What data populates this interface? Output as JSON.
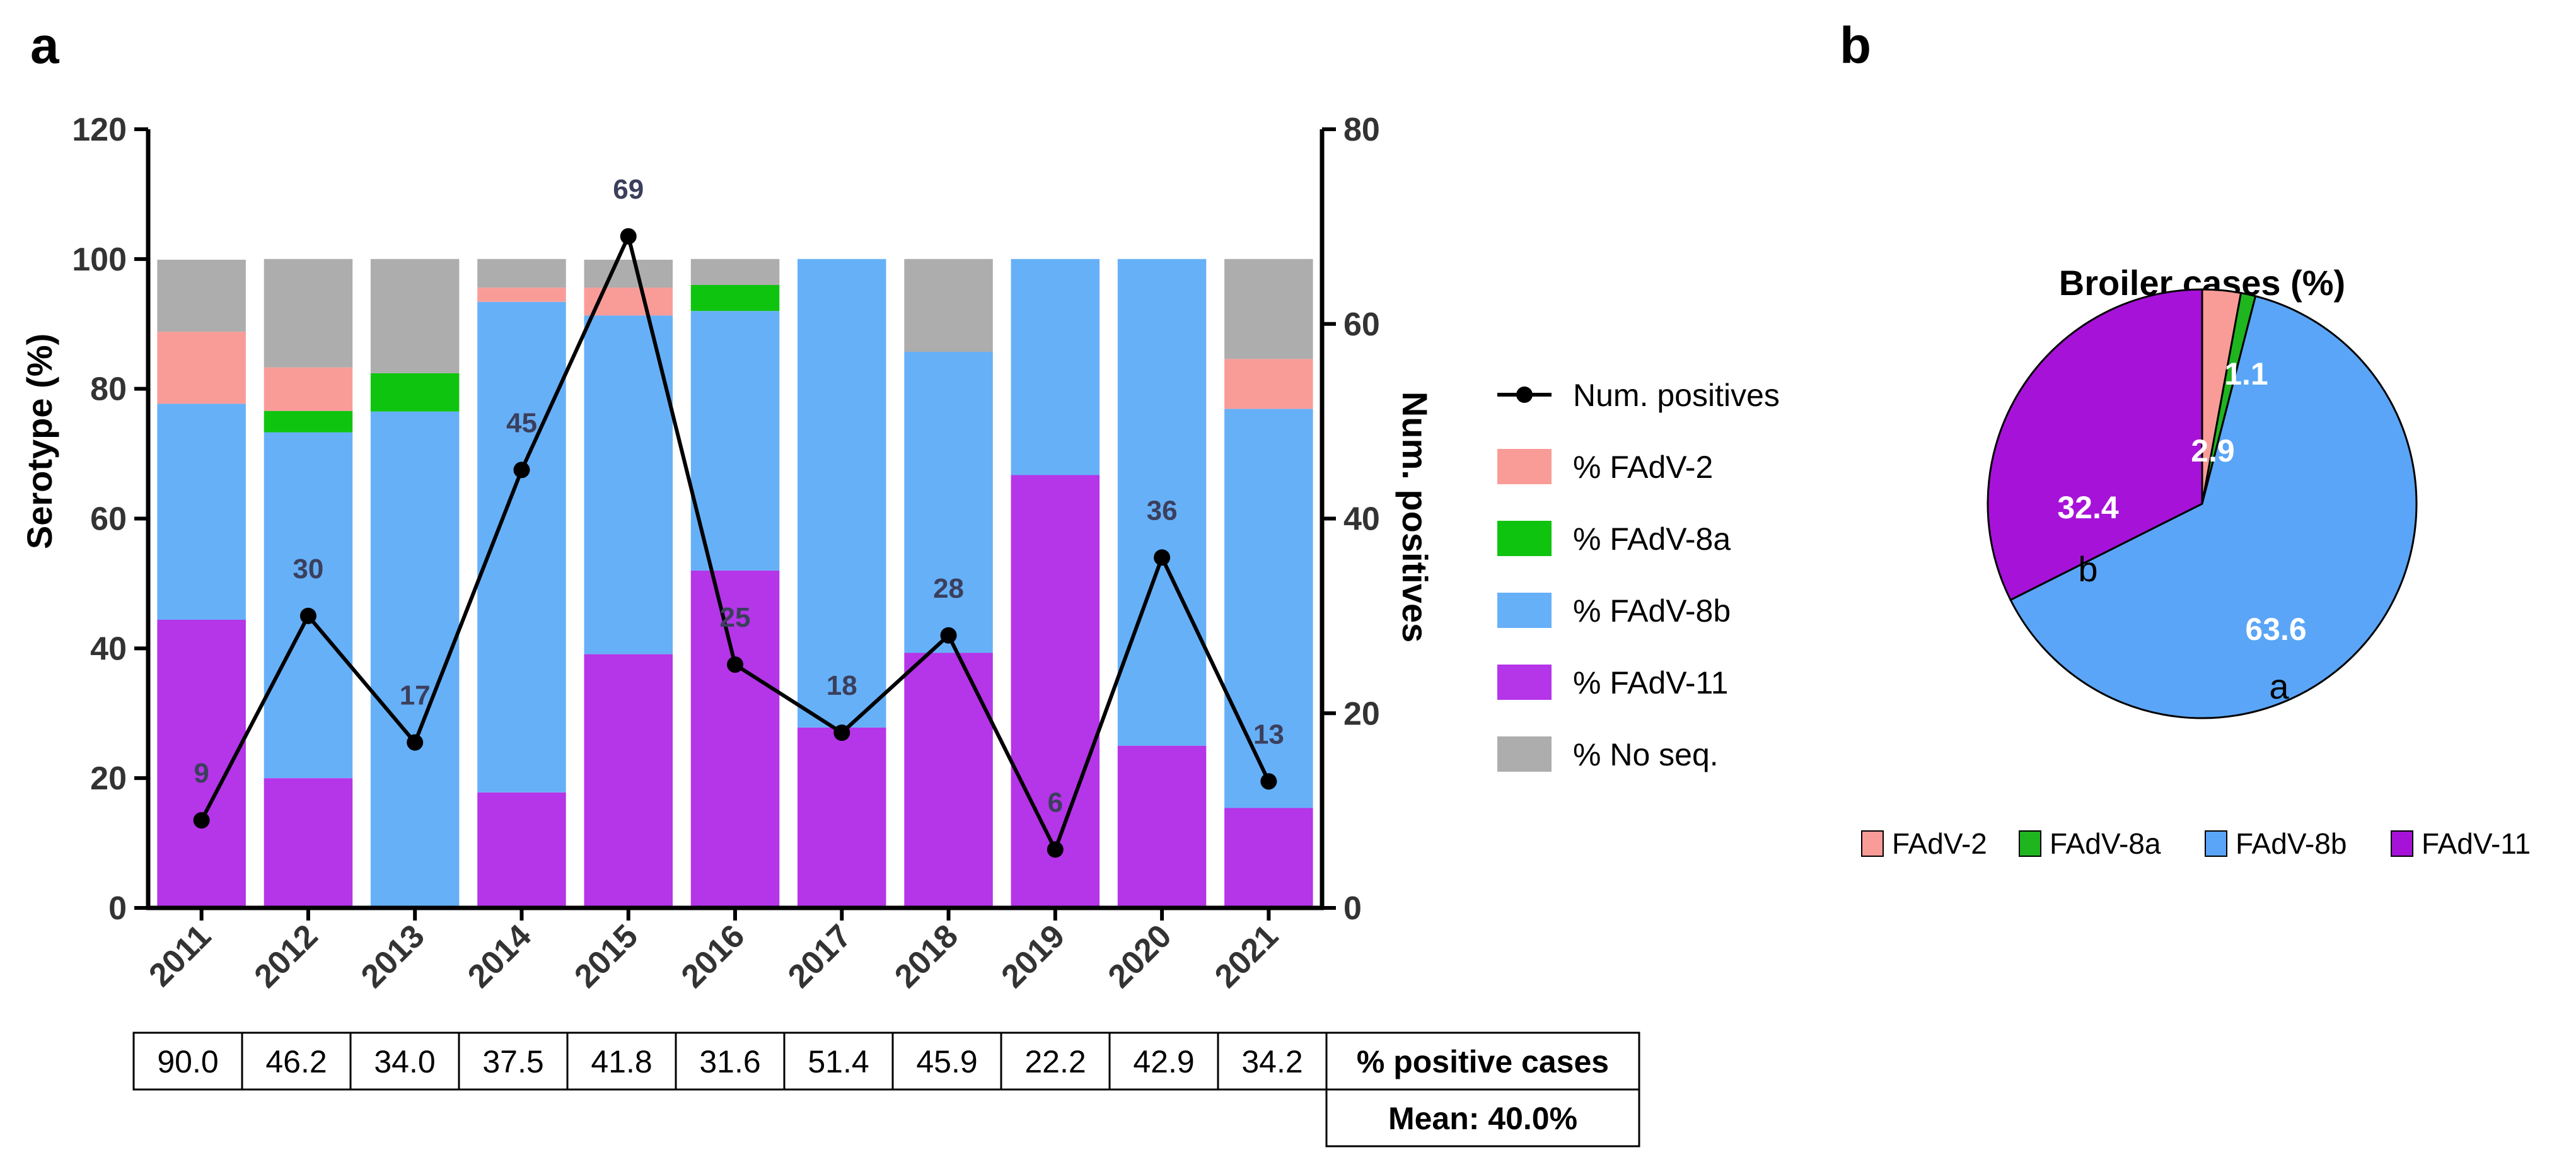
{
  "panel_a_letter": "a",
  "panel_b_letter": "b",
  "chart_data": [
    {
      "type": "bar",
      "stacked": true,
      "categories": [
        "2011",
        "2012",
        "2013",
        "2014",
        "2015",
        "2016",
        "2017",
        "2018",
        "2019",
        "2020",
        "2021"
      ],
      "series": [
        {
          "name": "% FAdV-11",
          "color": "#b535e8",
          "values": [
            44.4,
            20.0,
            0,
            17.8,
            39.1,
            52.0,
            27.8,
            39.3,
            66.7,
            25.0,
            15.4
          ]
        },
        {
          "name": "% FAdV-8b",
          "color": "#66b0f8",
          "values": [
            33.3,
            53.3,
            76.5,
            75.6,
            52.2,
            40.0,
            72.2,
            46.4,
            33.3,
            75.0,
            61.5
          ]
        },
        {
          "name": "% FAdV-8a",
          "color": "#0fc40f",
          "values": [
            0,
            3.3,
            5.9,
            0,
            0,
            4.0,
            0,
            0,
            0,
            0,
            0
          ]
        },
        {
          "name": "% FAdV-2",
          "color": "#f99c98",
          "values": [
            11.1,
            6.7,
            0,
            2.2,
            4.3,
            0,
            0,
            0,
            0,
            0,
            7.7
          ]
        },
        {
          "name": "% No seq.",
          "color": "#adadad",
          "values": [
            11.1,
            16.7,
            17.6,
            4.4,
            4.3,
            4.0,
            0,
            14.3,
            0,
            0,
            15.4
          ]
        }
      ],
      "line_series": {
        "name": "Num. positives",
        "color": "#000000",
        "values": [
          9,
          30,
          17,
          45,
          69,
          25,
          18,
          28,
          6,
          36,
          13
        ]
      },
      "ylabel": "Serotype (%)",
      "ylim": [
        0,
        120
      ],
      "yticks": [
        "0",
        "20",
        "40",
        "60",
        "80",
        "100",
        "120"
      ],
      "y2label": "Num. positives",
      "y2lim": [
        0,
        80
      ],
      "y2ticks": [
        "0",
        "20",
        "40",
        "60",
        "80"
      ],
      "legend": [
        "Num. positives",
        "% FAdV-2",
        "% FAdV-8a",
        "% FAdV-8b",
        "% FAdV-11",
        "% No seq."
      ],
      "table": {
        "values": [
          "90.0",
          "46.2",
          "34.0",
          "37.5",
          "41.8",
          "31.6",
          "51.4",
          "45.9",
          "22.2",
          "42.9",
          "34.2"
        ],
        "label": "% positive cases",
        "mean": "Mean: 40.0%"
      }
    },
    {
      "type": "pie",
      "title": "Broiler cases (%)",
      "slices": [
        {
          "name": "FAdV-2",
          "value": 2.9,
          "color": "#f99c98",
          "label": ""
        },
        {
          "name": "FAdV-8a",
          "value": 1.1,
          "color": "#1fb51f",
          "label": ""
        },
        {
          "name": "FAdV-8b",
          "value": 63.6,
          "color": "#5aa5f7",
          "label": "a"
        },
        {
          "name": "FAdV-11",
          "value": 32.4,
          "color": "#a712d9",
          "label": "b"
        }
      ],
      "value_labels": {
        "fadv2": "2.9",
        "fadv8a": "1.1",
        "fadv8b": "63.6",
        "fadv11": "32.4"
      },
      "legend": [
        "FAdV-2",
        "FAdV-8a",
        "FAdV-8b",
        "FAdV-11"
      ]
    }
  ]
}
